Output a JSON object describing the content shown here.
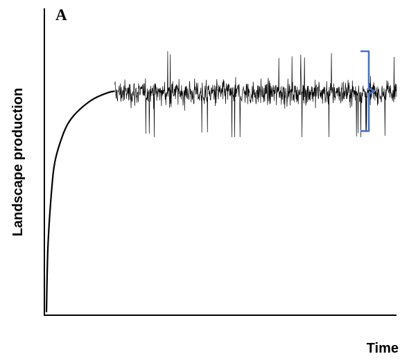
{
  "chart_data": {
    "type": "line",
    "panel_label": "A",
    "xlabel": "Time",
    "ylabel": "Landscape production",
    "ticks_shown": false,
    "grid": false,
    "legend": "none",
    "xlim": [
      0,
      100
    ],
    "ylim": [
      0,
      100
    ],
    "series": [
      {
        "segment": "saturating-rise",
        "points": [
          [
            0.6,
            1
          ],
          [
            1,
            22
          ],
          [
            2,
            40
          ],
          [
            3,
            50
          ],
          [
            5,
            58
          ],
          [
            7,
            63
          ],
          [
            10,
            67
          ],
          [
            14,
            70.5
          ],
          [
            18,
            72.5
          ],
          [
            20,
            73
          ]
        ]
      },
      {
        "segment": "fluctuating-plateau",
        "x_range": [
          20,
          100
        ],
        "mean": 72.5,
        "typical_range": [
          68,
          78
        ],
        "extremes": [
          58,
          86
        ]
      }
    ],
    "annotations": [
      {
        "kind": "right-brace",
        "spans_y": [
          60,
          86
        ],
        "color": "#4472C4"
      }
    ]
  }
}
